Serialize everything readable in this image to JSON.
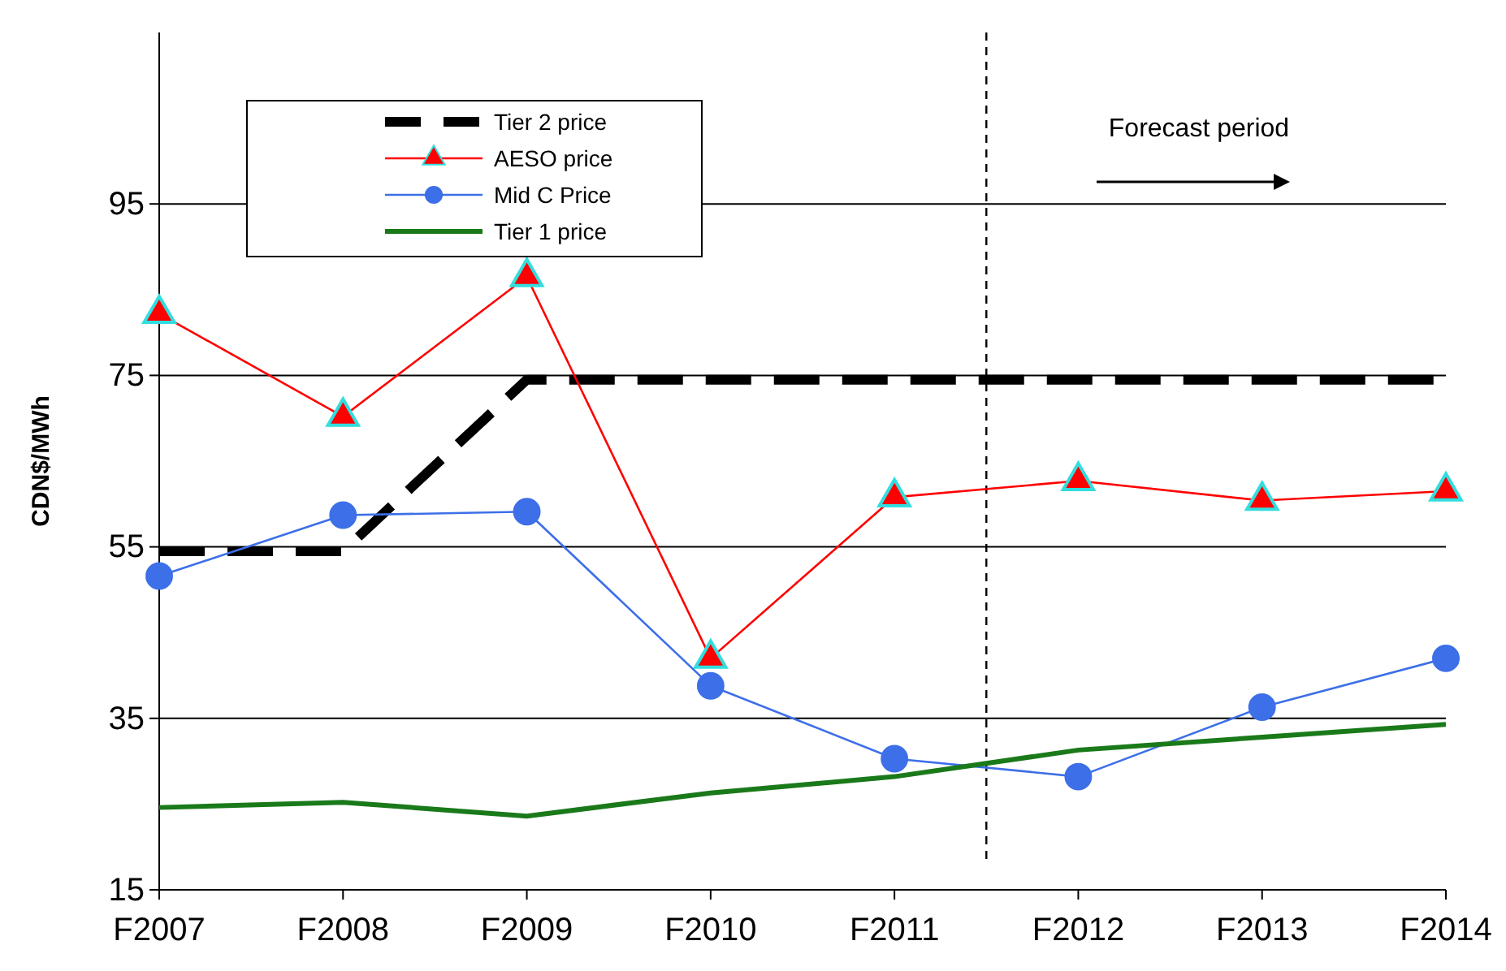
{
  "chart_data": {
    "type": "line",
    "ylabel": "CDN$/MWh",
    "categories": [
      "F2007",
      "F2008",
      "F2009",
      "F2010",
      "F2011",
      "F2012",
      "F2013",
      "F2014"
    ],
    "ylim": [
      15,
      115
    ],
    "yticks": [
      15,
      35,
      55,
      75,
      95
    ],
    "grid": "y",
    "legend": "top left",
    "series": [
      {
        "name": "Tier 2 price",
        "color": "#000000",
        "line_style": "dashed",
        "marker": "none",
        "values": [
          54.5,
          54.5,
          74.5,
          74.5,
          74.5,
          74.5,
          74.5,
          74.5
        ]
      },
      {
        "name": "AESO price",
        "color": "#ff0000",
        "marker": "triangle",
        "values": [
          82.2,
          70.2,
          86.5,
          42,
          60.8,
          62.7,
          60.4,
          61.5
        ]
      },
      {
        "name": "Mid C Price",
        "color": "#3d6fe8",
        "marker": "circle",
        "values": [
          51.6,
          58.7,
          59.1,
          38.8,
          30.3,
          28.2,
          36.3,
          42
        ]
      },
      {
        "name": "Tier 1 price",
        "color": "#1a7a1a",
        "marker": "none",
        "values": [
          24.6,
          25.2,
          23.6,
          26.3,
          28.2,
          31.3,
          32.8,
          34.3
        ]
      }
    ],
    "annotations": [
      "Forecast period"
    ]
  }
}
